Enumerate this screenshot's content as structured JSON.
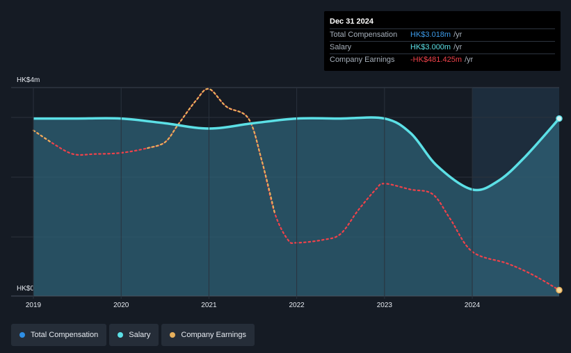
{
  "tooltip": {
    "date": "Dec 31 2024",
    "rows": [
      {
        "label": "Total Compensation",
        "value": "HK$3.018m",
        "unit": "/yr",
        "color": "#3d9be9"
      },
      {
        "label": "Salary",
        "value": "HK$3.000m",
        "unit": "/yr",
        "color": "#5ce0e6"
      },
      {
        "label": "Company Earnings",
        "value": "-HK$481.425m",
        "unit": "/yr",
        "color": "#f0424a"
      }
    ]
  },
  "legend": [
    {
      "label": "Total Compensation",
      "color": "#2e8fe6"
    },
    {
      "label": "Salary",
      "color": "#5ce0e6"
    },
    {
      "label": "Company Earnings",
      "color": "#e8b05c"
    }
  ],
  "chart_data": {
    "type": "line",
    "y_axis_labels": [
      "HK$4m",
      "HK$0"
    ],
    "x_ticks": [
      "2019",
      "2020",
      "2021",
      "2022",
      "2023",
      "2024"
    ],
    "ylim": [
      0,
      3.5
    ],
    "xlim": [
      2019.0,
      2024.99
    ],
    "highlight_start": 2024.0,
    "series": [
      {
        "name": "Salary",
        "color": "#5ce0e6",
        "x": [
          2019.0,
          2019.5,
          2020.0,
          2020.5,
          2021.0,
          2021.5,
          2022.0,
          2022.5,
          2023.0,
          2023.3,
          2023.6,
          2024.0,
          2024.3,
          2024.6,
          2024.99
        ],
        "values": [
          3.0,
          3.0,
          3.0,
          2.92,
          2.83,
          2.92,
          3.0,
          3.0,
          3.0,
          2.75,
          2.2,
          1.8,
          1.95,
          2.35,
          3.0
        ]
      },
      {
        "name": "Total Compensation",
        "color": "#2e8fe6",
        "x": [
          2019.0,
          2019.5,
          2020.0,
          2020.5,
          2021.0,
          2021.5,
          2022.0,
          2022.5,
          2023.0,
          2023.3,
          2023.6,
          2024.0,
          2024.3,
          2024.6,
          2024.99
        ],
        "values": [
          3.0,
          3.0,
          3.0,
          2.92,
          2.83,
          2.92,
          3.0,
          3.0,
          3.0,
          2.75,
          2.2,
          1.8,
          1.95,
          2.35,
          3.018
        ]
      },
      {
        "name": "Company Earnings",
        "color": "#f0424a",
        "color_positive": "#e8b05c",
        "x": [
          2019.0,
          2019.2,
          2019.45,
          2019.7,
          2020.0,
          2020.3,
          2020.5,
          2020.65,
          2020.85,
          2021.0,
          2021.2,
          2021.45,
          2021.6,
          2021.75,
          2021.9,
          2022.0,
          2022.3,
          2022.5,
          2022.7,
          2022.9,
          2023.0,
          2023.3,
          2023.55,
          2023.75,
          2024.0,
          2024.4,
          2024.7,
          2024.99
        ],
        "values": [
          2.8,
          2.6,
          2.4,
          2.4,
          2.42,
          2.5,
          2.6,
          2.9,
          3.3,
          3.5,
          3.2,
          3.0,
          2.3,
          1.4,
          0.95,
          0.9,
          0.95,
          1.05,
          1.45,
          1.8,
          1.9,
          1.8,
          1.72,
          1.3,
          0.75,
          0.55,
          0.35,
          0.1
        ]
      }
    ]
  }
}
